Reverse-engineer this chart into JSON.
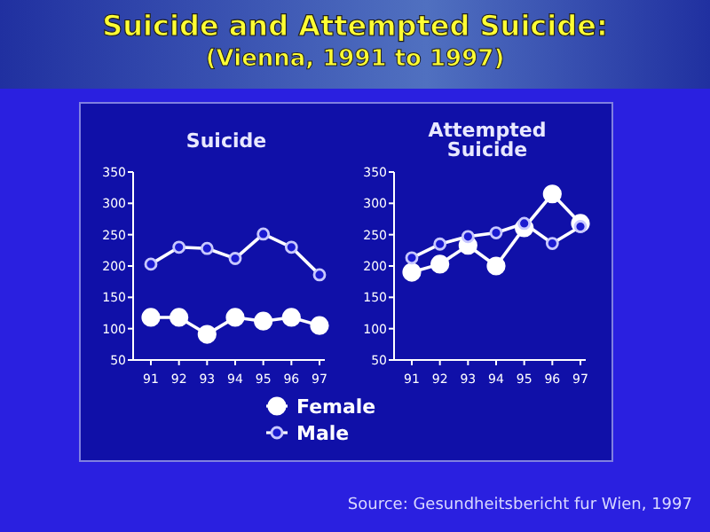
{
  "chart_data": [
    {
      "type": "line",
      "title": "Suicide",
      "categories": [
        "91",
        "92",
        "93",
        "94",
        "95",
        "96",
        "97"
      ],
      "ylim": [
        50,
        350
      ],
      "yticks": [
        50,
        100,
        150,
        200,
        250,
        300,
        350
      ],
      "marker": "circle",
      "legend": "bottom",
      "series": [
        {
          "name": "Female",
          "color": "#ffffff",
          "values": [
            118,
            118,
            91,
            118,
            112,
            118,
            105
          ]
        },
        {
          "name": "Male",
          "color": "#ffffff",
          "values": [
            203,
            230,
            228,
            212,
            251,
            230,
            186
          ]
        }
      ]
    },
    {
      "type": "line",
      "title": "Attempted Suicide",
      "categories": [
        "91",
        "92",
        "93",
        "94",
        "95",
        "96",
        "97"
      ],
      "ylim": [
        50,
        350
      ],
      "yticks": [
        50,
        100,
        150,
        200,
        250,
        300,
        350
      ],
      "marker": "circle",
      "series": [
        {
          "color": "#ffffff",
          "values": [
            190,
            203,
            233,
            200,
            261,
            315,
            268
          ]
        },
        {
          "color": "#ffffff",
          "values": [
            213,
            235,
            247,
            253,
            268,
            236,
            263
          ]
        }
      ]
    },
    {
      "type": "other",
      "title": "Suicide and Attempted Suicide:",
      "subtitle": "(Vienna, 1991 to 1997)",
      "annotations": [
        "Source: Gesundheitsbericht fur Wien, 1997"
      ]
    }
  ]
}
